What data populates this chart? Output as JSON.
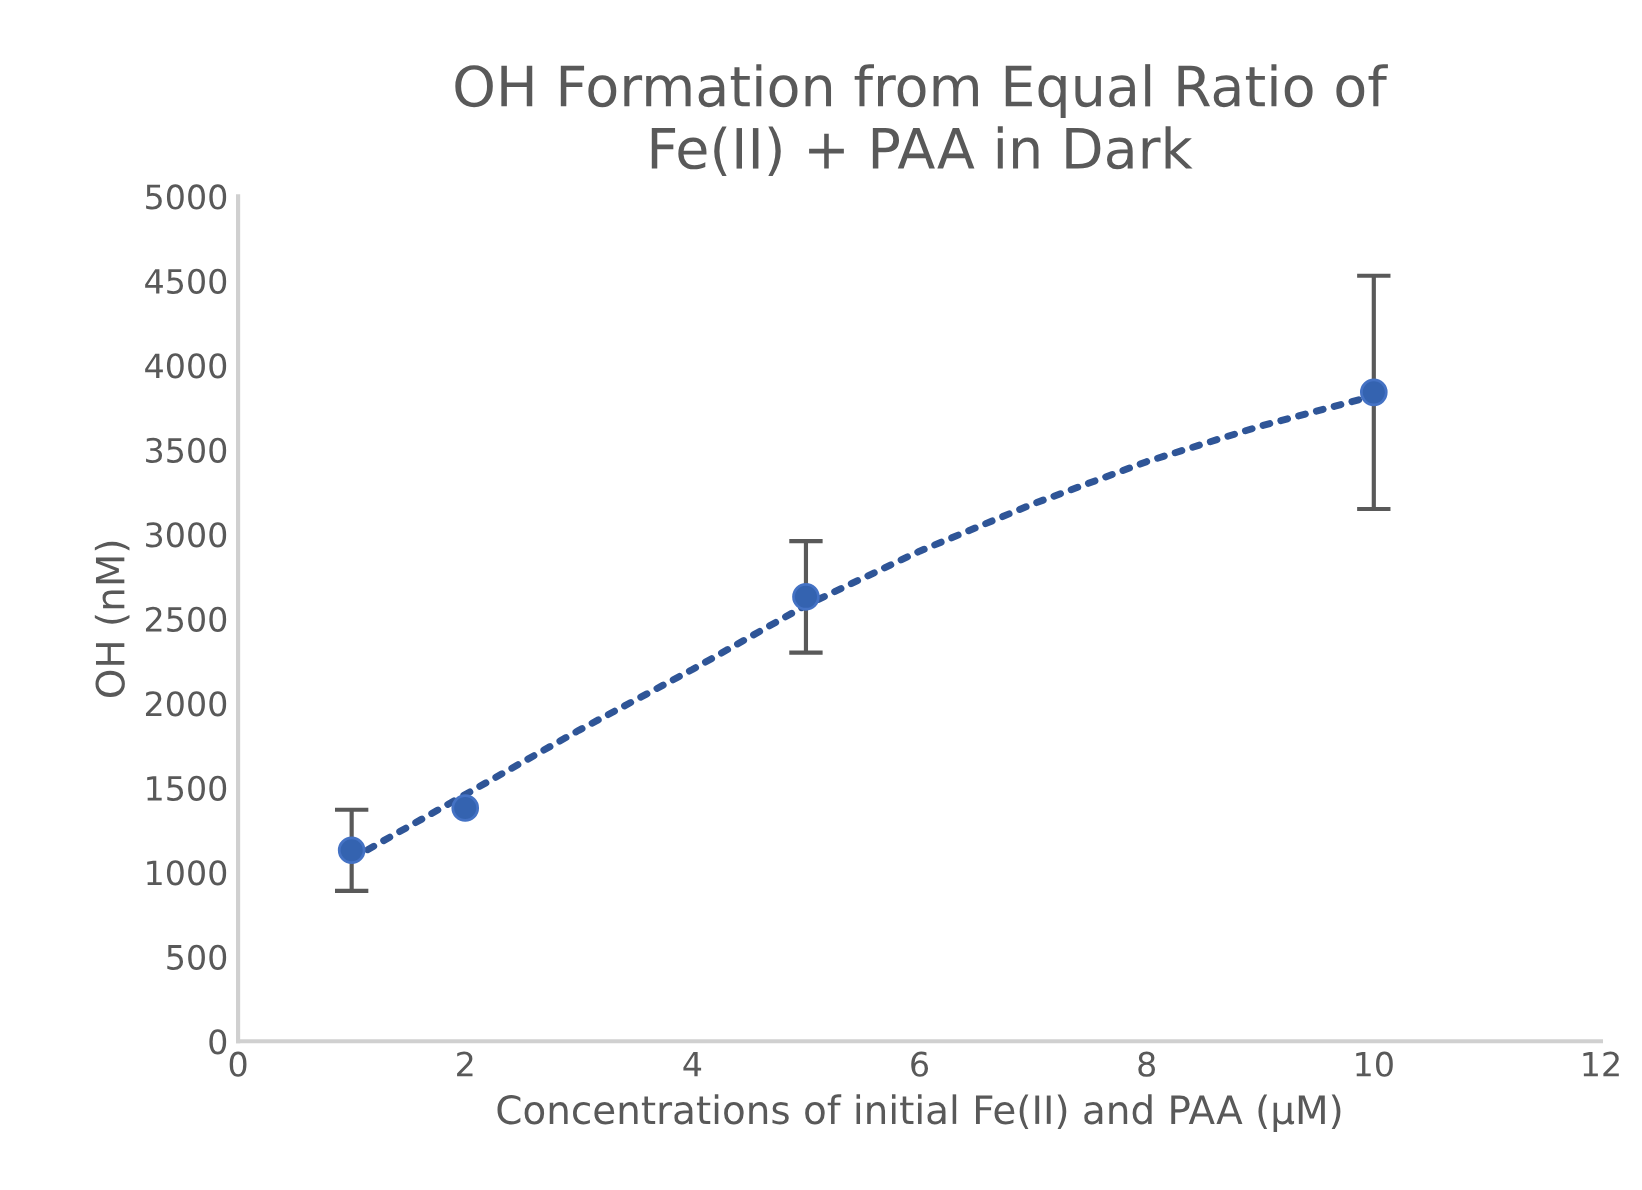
{
  "chart_data": {
    "type": "scatter",
    "title": "OH Formation from Equal Ratio of\nFe(II) + PAA in Dark",
    "xlabel": "Concentrations of initial Fe(II) and PAA (µM)",
    "ylabel": "OH (nM)",
    "xlim": [
      0,
      12
    ],
    "xticks": [
      0,
      2,
      4,
      6,
      8,
      10,
      12
    ],
    "ylim": [
      0,
      5000
    ],
    "yticks": [
      0,
      500,
      1000,
      1500,
      2000,
      2500,
      3000,
      3500,
      4000,
      4500,
      5000
    ],
    "grid": false,
    "legend": false,
    "series": [
      {
        "color": "#3463b0",
        "marker": "circle",
        "x": [
          1,
          2,
          5,
          10
        ],
        "values": [
          1130,
          1380,
          2630,
          3840
        ],
        "errors": [
          240,
          null,
          330,
          690
        ]
      },
      {
        "type": "line",
        "color": "#2f5597",
        "line_style": "dotted",
        "marker": "none",
        "x": [
          1,
          2,
          3,
          4,
          5,
          6,
          7,
          8,
          9,
          10
        ],
        "values": [
          1080,
          1460,
          1840,
          2200,
          2580,
          2900,
          3180,
          3430,
          3640,
          3820
        ]
      }
    ]
  }
}
